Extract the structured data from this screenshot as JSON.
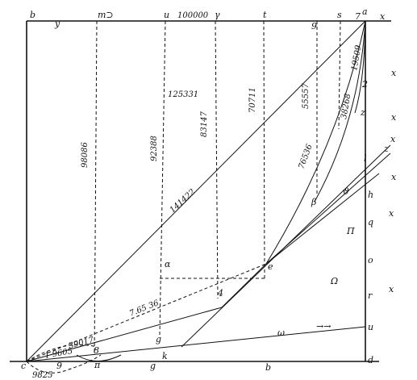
{
  "labels": {
    "b_top": "b",
    "y": "y",
    "m_top": "m⊃",
    "u_top": "u",
    "n100000": "100000",
    "gamma_top": "γ",
    "t_top": "t",
    "s_top": "s",
    "nine_top": "9",
    "a": "a",
    "seven": "7",
    "x_top": "x",
    "x1": "x",
    "x2": "x",
    "x3": "x",
    "x4": "x",
    "x5": "x",
    "x6": "x",
    "x7": "x",
    "two": "2",
    "z": "z",
    "l": "l",
    "h": "h",
    "q": "q",
    "o": "o",
    "r": "r",
    "u_right": "u",
    "d": "d",
    "b_bottom": "b",
    "g_bottom": "g",
    "pi_small": "π",
    "c": "c",
    "k": "k",
    "g_mid": "g",
    "four": "4",
    "e": "e",
    "beta": "β",
    "omega": "ω",
    "alpha": "α",
    "Pi": "Π",
    "Omega": "Ω",
    "theta": "ϑ",
    "scroll_sym": "→→",
    "eight": "8",
    "nine_bottom": "9",
    "z_slope": "z",
    "x_slope": "x"
  },
  "numbers": {
    "n98086": "98086",
    "n92388": "92388",
    "n125331": "125331",
    "n83147": "83147",
    "n70711": "70711",
    "n55557": "55557",
    "n38268": "38268",
    "n19509": "19509",
    "n76536": "76536",
    "n141422": "141422",
    "n76536b": "7.65 36",
    "n39017": "39017",
    "n19605": "1 9605",
    "n9825": "9825"
  }
}
